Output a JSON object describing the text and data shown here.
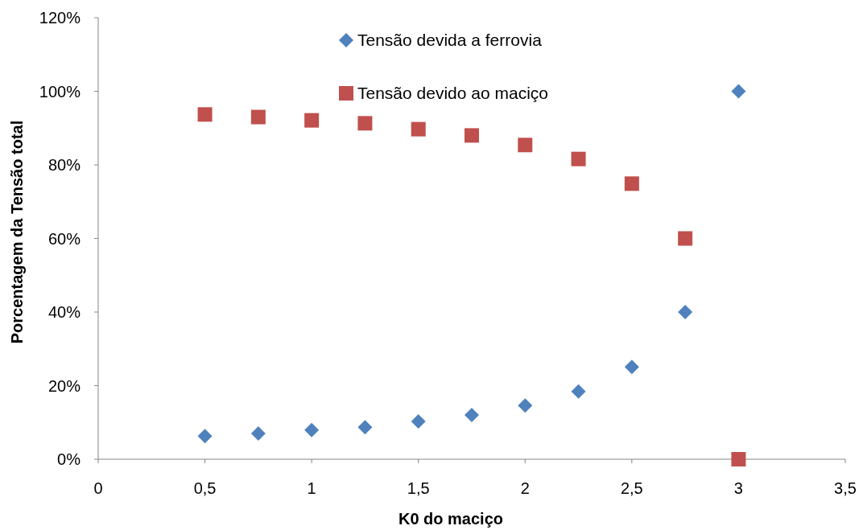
{
  "chart_data": {
    "type": "scatter",
    "xlabel": "K0 do maciço",
    "ylabel": "Porcentagem da Tensão total",
    "xlim": [
      0,
      3.5
    ],
    "ylim": [
      0,
      120
    ],
    "xticks": [
      0,
      {
        "value": 0.5,
        "label": "0,5"
      },
      1,
      {
        "value": 1.5,
        "label": "1,5"
      },
      2,
      {
        "value": 2.5,
        "label": "2,5"
      },
      3,
      {
        "value": 3.5,
        "label": "3,5"
      }
    ],
    "yticks": [
      {
        "value": 0,
        "label": "0%"
      },
      {
        "value": 20,
        "label": "20%"
      },
      {
        "value": 40,
        "label": "40%"
      },
      {
        "value": 60,
        "label": "60%"
      },
      {
        "value": 80,
        "label": "80%"
      },
      {
        "value": 100,
        "label": "100%"
      },
      {
        "value": 120,
        "label": "120%"
      }
    ],
    "x": [
      0.5,
      0.75,
      1,
      1.25,
      1.5,
      1.75,
      2,
      2.25,
      2.5,
      2.75,
      3
    ],
    "legend": "top",
    "series": [
      {
        "name": "Tensão devida a ferrovia",
        "color": "#4f81bd",
        "marker": "diamond",
        "values": [
          6.3,
          7,
          7.9,
          8.7,
          10.3,
          12,
          14.6,
          18.4,
          25.1,
          40,
          100
        ]
      },
      {
        "name": "Tensão devido ao maciço",
        "color": "#c0504d",
        "marker": "square",
        "values": [
          93.7,
          93,
          92.1,
          91.3,
          89.7,
          88,
          85.4,
          81.6,
          74.9,
          60,
          0
        ]
      }
    ]
  }
}
